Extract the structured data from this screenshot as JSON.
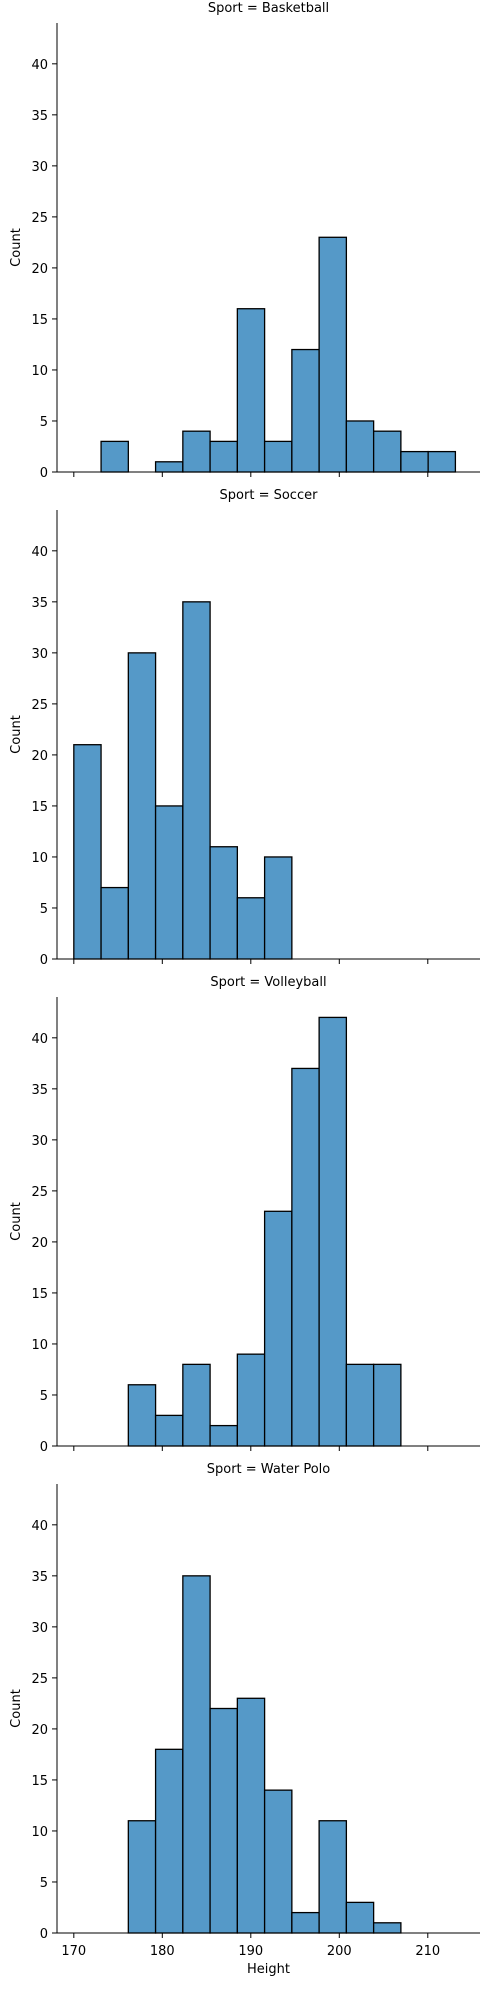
{
  "chart_data": {
    "type": "bar",
    "xlabel": "Height",
    "ylabel": "Count",
    "x_ticks": [
      170,
      180,
      190,
      200,
      210
    ],
    "y_ticks": [
      0,
      5,
      10,
      15,
      20,
      25,
      30,
      35,
      40
    ],
    "xlim": [
      168.1,
      215.9
    ],
    "ylim": [
      0,
      44
    ],
    "bar_color": "#5599c8",
    "bar_edge_color": "#000000",
    "bin_edges": [
      170.0,
      173.08,
      176.16,
      179.24,
      182.32,
      185.4,
      188.48,
      191.56,
      194.64,
      197.72,
      200.8,
      203.88,
      206.96,
      210.04,
      213.12
    ],
    "panels": [
      {
        "title": "Sport = Basketball",
        "counts": [
          0,
          3,
          0,
          1,
          4,
          3,
          16,
          3,
          12,
          23,
          5,
          4,
          2,
          2
        ]
      },
      {
        "title": "Sport = Soccer",
        "counts": [
          21,
          7,
          30,
          15,
          35,
          11,
          6,
          10,
          0,
          0,
          0,
          0,
          0,
          0
        ]
      },
      {
        "title": "Sport = Volleyball",
        "counts": [
          0,
          0,
          6,
          3,
          8,
          2,
          9,
          23,
          37,
          42,
          8,
          8,
          0,
          0
        ]
      },
      {
        "title": "Sport = Water Polo",
        "counts": [
          0,
          0,
          11,
          18,
          35,
          22,
          23,
          14,
          2,
          11,
          3,
          1,
          0,
          0
        ]
      }
    ]
  }
}
